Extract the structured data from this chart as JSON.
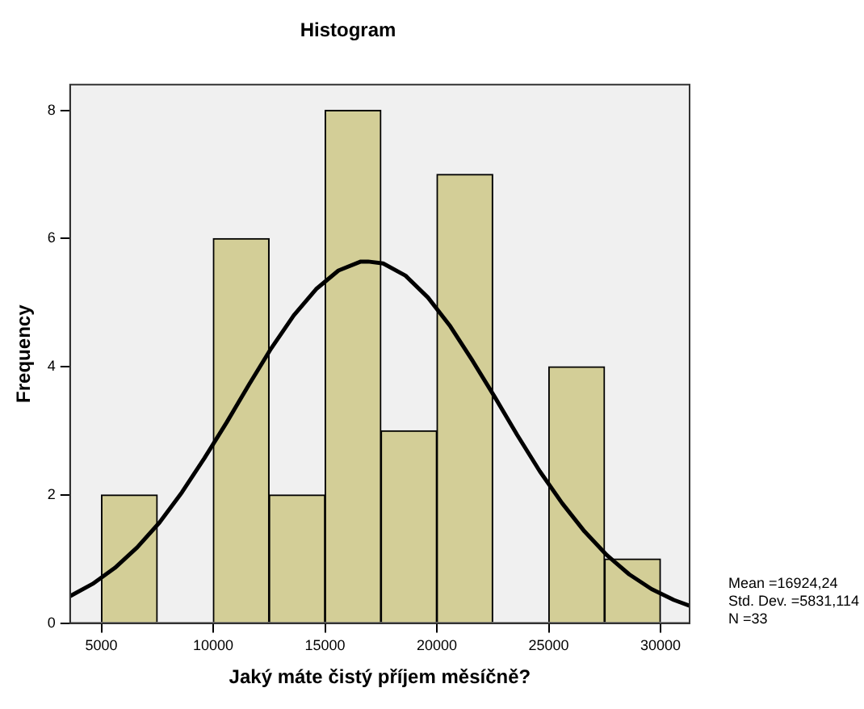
{
  "chart_data": {
    "type": "histogram",
    "title": "Histogram",
    "xlabel": "Jaký máte čistý příjem měsíčně?",
    "ylabel": "Frequency",
    "xlim": [
      3600,
      31300
    ],
    "xticks": [
      5000,
      10000,
      15000,
      20000,
      25000,
      30000
    ],
    "ylim": [
      0,
      8.4
    ],
    "yticks": [
      0,
      2,
      4,
      6,
      8
    ],
    "grid": false,
    "legend": false,
    "marker": "none",
    "series": [
      {
        "color": "#d3ce97",
        "bins": [
          5000,
          7500,
          10000,
          12500,
          15000,
          17500,
          20000,
          22500,
          25000,
          27500,
          30000
        ],
        "values": [
          2,
          0,
          6,
          2,
          8,
          3,
          7,
          0,
          4,
          1
        ]
      },
      {
        "type": "line",
        "color": "#000000",
        "x": [
          3600,
          4600,
          5600,
          6600,
          7600,
          8600,
          9600,
          10600,
          11600,
          12600,
          13600,
          14600,
          15600,
          16600,
          16924,
          17600,
          18600,
          19600,
          20600,
          21600,
          22600,
          23600,
          24600,
          25600,
          26600,
          27600,
          28600,
          29600,
          30600,
          31300
        ],
        "values": [
          0.42,
          0.61,
          0.86,
          1.18,
          1.57,
          2.04,
          2.57,
          3.13,
          3.72,
          4.29,
          4.8,
          5.21,
          5.5,
          5.64,
          5.64,
          5.61,
          5.42,
          5.08,
          4.63,
          4.09,
          3.52,
          2.93,
          2.37,
          1.87,
          1.43,
          1.06,
          0.76,
          0.53,
          0.36,
          0.27
        ]
      }
    ],
    "annotations": [
      "Mean =16924,24",
      "Std. Dev. =5831,114",
      "N =33"
    ]
  }
}
